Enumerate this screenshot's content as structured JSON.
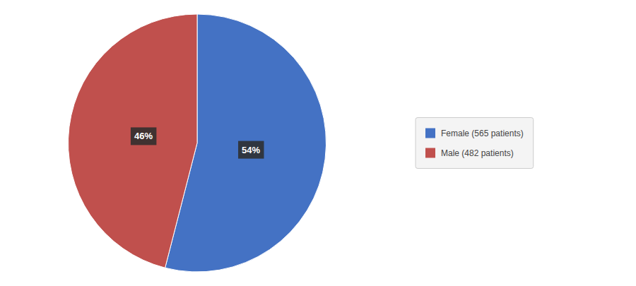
{
  "chart_data": {
    "type": "pie",
    "categories": [
      "Female (565 patients)",
      "Male (482 patients)"
    ],
    "values": [
      54,
      46
    ],
    "value_labels": [
      "54%",
      "46%"
    ],
    "colors": [
      "#4472C4",
      "#C0504D"
    ],
    "data_labels": true,
    "legend": "right"
  }
}
